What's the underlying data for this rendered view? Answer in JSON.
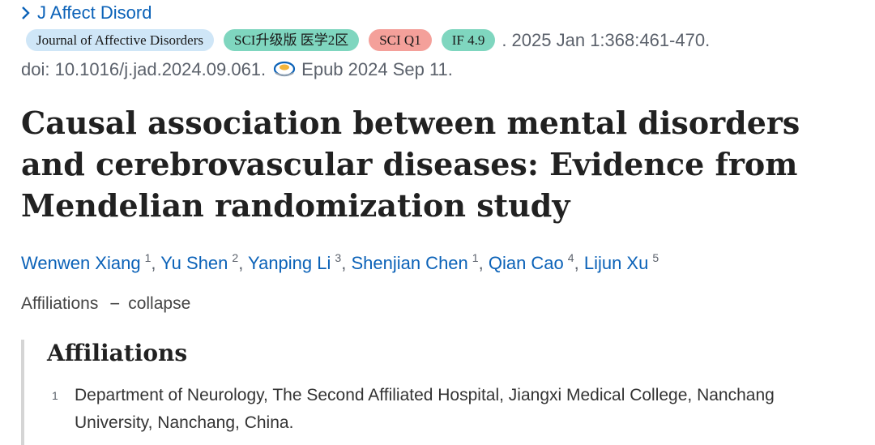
{
  "journal": {
    "link_text": "J Affect Disord"
  },
  "badges": {
    "journal": "Journal of Affective Disorders",
    "sci": "SCI升级版 医学2区",
    "q1": "SCI Q1",
    "if": "IF 4.9"
  },
  "citation": {
    "date": ". 2025 Jan 1:368:461-470.",
    "doi": "doi: 10.1016/j.jad.2024.09.061.",
    "epub": "Epub 2024 Sep 11."
  },
  "article": {
    "title": "Causal association between mental disorders and cerebrovascular diseases: Evidence from Mendelian randomization study"
  },
  "authors": [
    {
      "name": "Wenwen Xiang",
      "sup": "1"
    },
    {
      "name": "Yu Shen",
      "sup": "2"
    },
    {
      "name": "Yanping Li",
      "sup": "3"
    },
    {
      "name": "Shenjian Chen",
      "sup": "1"
    },
    {
      "name": "Qian Cao",
      "sup": "4"
    },
    {
      "name": "Lijun Xu",
      "sup": "5"
    }
  ],
  "author_separator": ",",
  "affiliations_toggle": {
    "label": "Affiliations",
    "dash": "−",
    "action": "collapse"
  },
  "affiliations": {
    "heading": "Affiliations",
    "items": [
      {
        "num": "1",
        "text": "Department of Neurology, The Second Affiliated Hospital, Jiangxi Medical College, Nanchang University, Nanchang, China."
      }
    ]
  },
  "colors": {
    "link": "#0b62b8",
    "badge_blue": "#cfe6f7",
    "badge_green": "#7fd6bf",
    "badge_red": "#f4a09a"
  }
}
